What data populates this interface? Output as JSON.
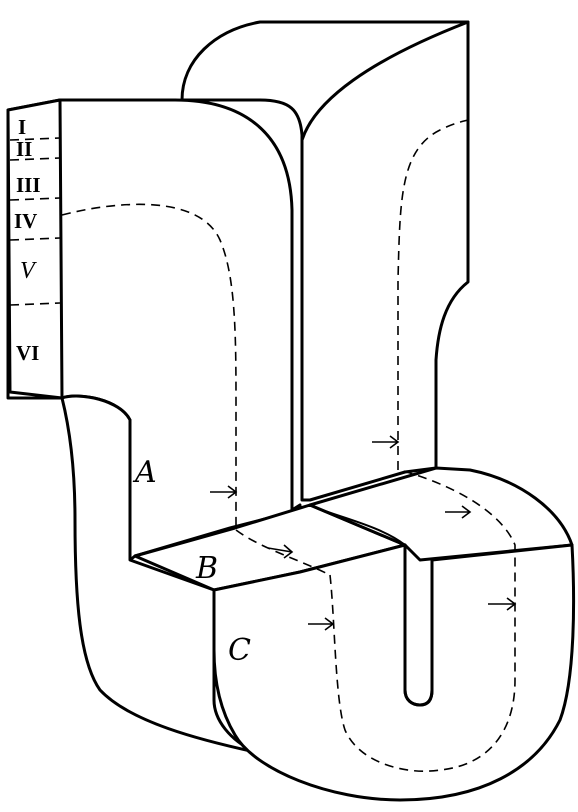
{
  "labels": {
    "A": "A",
    "B": "B",
    "C": "C"
  },
  "layers": [
    "I",
    "II",
    "III",
    "IV",
    "V",
    "VI"
  ]
}
